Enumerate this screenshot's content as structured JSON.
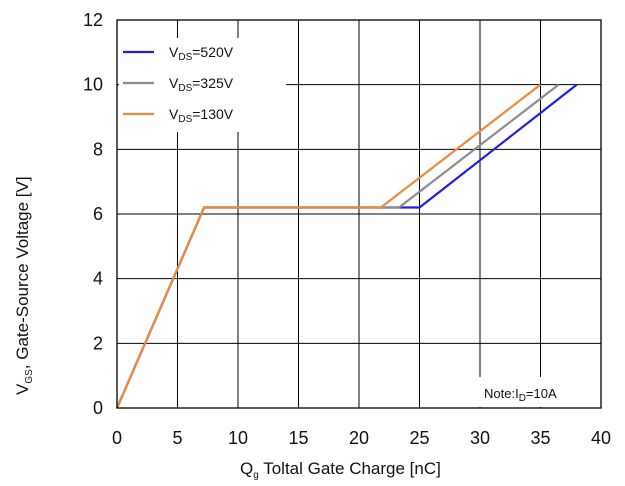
{
  "chart_data": {
    "type": "line",
    "title": "",
    "xlabel": {
      "main": "Q",
      "sub": "g",
      "rest": " Toltal Gate Charge [nC]"
    },
    "ylabel": {
      "main": "V",
      "sub": "GS",
      "rest": ", Gate-Source Voltage [V]"
    },
    "xlim": [
      0,
      40
    ],
    "ylim": [
      0,
      12
    ],
    "xticks": [
      0,
      5,
      10,
      15,
      20,
      25,
      30,
      35,
      40
    ],
    "yticks": [
      0,
      2,
      4,
      6,
      8,
      10,
      12
    ],
    "grid": true,
    "legend": "top-left",
    "series": [
      {
        "name": {
          "main": "V",
          "sub": "DS",
          "rest": "=520V"
        },
        "color": "#1f1fdc",
        "x": [
          0,
          7.2,
          25,
          38
        ],
        "y": [
          0,
          6.2,
          6.2,
          10
        ]
      },
      {
        "name": {
          "main": "V",
          "sub": "DS",
          "rest": "=325V"
        },
        "color": "#8c8c8c",
        "x": [
          0,
          7.2,
          23.3,
          36.5
        ],
        "y": [
          0,
          6.2,
          6.2,
          10
        ]
      },
      {
        "name": {
          "main": "V",
          "sub": "DS",
          "rest": "=130V"
        },
        "color": "#f0883a",
        "x": [
          0,
          7.2,
          21.8,
          35
        ],
        "y": [
          0,
          6.2,
          6.2,
          10
        ]
      }
    ],
    "annotation": {
      "main": "Note:I",
      "sub": "D",
      "rest": "=10A",
      "position": "bottom-right"
    }
  }
}
